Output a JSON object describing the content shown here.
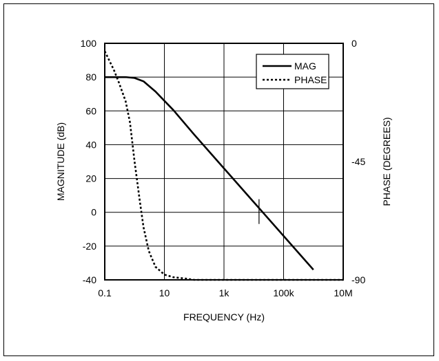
{
  "chart_data": {
    "type": "line",
    "xlabel": "FREQUENCY (Hz)",
    "ylabel": "MAGNITUDE (dB)",
    "y2label": "PHASE (DEGREES)",
    "xscale": "log",
    "xlim": [
      0.1,
      10000000
    ],
    "ylim": [
      -40,
      100
    ],
    "y2lim": [
      -90,
      0
    ],
    "x_ticks": [
      {
        "value": 0.1,
        "label": "0.1"
      },
      {
        "value": 10,
        "label": "10"
      },
      {
        "value": 1000,
        "label": "1k"
      },
      {
        "value": 100000,
        "label": "100k"
      },
      {
        "value": 10000000,
        "label": "10M"
      }
    ],
    "y_ticks": [
      {
        "value": 100,
        "label": "100"
      },
      {
        "value": 80,
        "label": "80"
      },
      {
        "value": 60,
        "label": "60"
      },
      {
        "value": 40,
        "label": "40"
      },
      {
        "value": 20,
        "label": "20"
      },
      {
        "value": 0,
        "label": "0"
      },
      {
        "value": -20,
        "label": "-20"
      },
      {
        "value": -40,
        "label": "-40"
      }
    ],
    "y2_ticks": [
      {
        "value": 0,
        "label": "0"
      },
      {
        "value": -45,
        "label": "-45"
      },
      {
        "value": -90,
        "label": "-90"
      }
    ],
    "grid": true,
    "legend_position": "top-right",
    "series": [
      {
        "name": "MAG",
        "axis": "left",
        "style": "solid",
        "x": [
          0.1,
          0.2,
          0.5,
          1,
          2,
          5,
          10,
          20,
          100,
          1000,
          10000,
          100000,
          1000000
        ],
        "y": [
          80,
          80,
          80,
          79.5,
          77.5,
          71.5,
          66,
          60.5,
          46,
          26,
          6,
          -14,
          -34
        ]
      },
      {
        "name": "PHASE",
        "axis": "right",
        "style": "dotted",
        "x": [
          0.1,
          0.2,
          0.3,
          0.5,
          0.7,
          1,
          1.5,
          2,
          3,
          5,
          10,
          20,
          50,
          100,
          1000,
          10000000
        ],
        "y": [
          -3,
          -10,
          -15,
          -22,
          -30,
          -45,
          -60,
          -70,
          -79,
          -85,
          -88,
          -89,
          -89.5,
          -90,
          -90,
          -90
        ]
      }
    ],
    "annotations": [
      {
        "type": "tick_marker",
        "x": 15000,
        "y": 0
      }
    ]
  }
}
